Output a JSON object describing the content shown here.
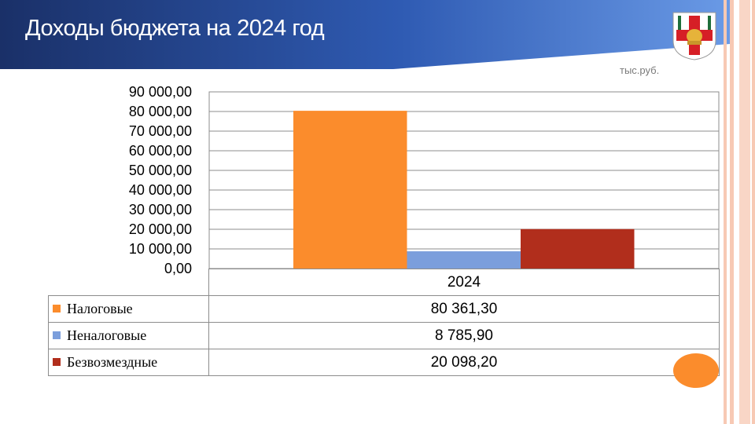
{
  "slide": {
    "title": "Доходы бюджета на",
    "title_year": "2024  год",
    "units": "тыс.руб."
  },
  "icons": {
    "emblem": "coat-of-arms-red-cross-helmet-icon",
    "decor": "orange-oval-decoration"
  },
  "colors": {
    "banner_dark": "#1c3a74",
    "banner_light": "#5b8bdc",
    "stripe": "#f7c9b4",
    "tax": "#fb8c2c",
    "nontax": "#7b9edc",
    "gratuitous": "#b12e1c"
  },
  "chart_data": {
    "type": "bar",
    "title": "",
    "xlabel": "",
    "ylabel": "",
    "categories": [
      "2024"
    ],
    "ylim": [
      0,
      90000
    ],
    "yticks": [
      "0,00",
      "10 000,00",
      "20 000,00",
      "30 000,00",
      "40 000,00",
      "50 000,00",
      "60 000,00",
      "70 000,00",
      "80 000,00",
      "90 000,00"
    ],
    "grid": true,
    "legend": "data-table-below",
    "series": [
      {
        "name": "Налоговые",
        "values": [
          80361.3
        ],
        "label": "80 361,30",
        "color": "#fb8c2c"
      },
      {
        "name": "Неналоговые",
        "values": [
          8785.9
        ],
        "label": "8 785,90",
        "color": "#7b9edc"
      },
      {
        "name": "Безвозмездные",
        "values": [
          20098.2
        ],
        "label": "20 098,20",
        "color": "#b12e1c"
      }
    ]
  }
}
